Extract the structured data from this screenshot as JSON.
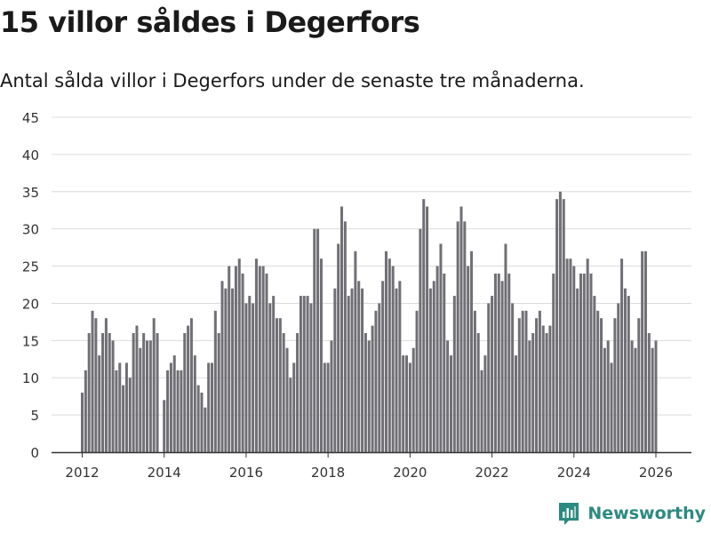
{
  "title": "15 villor såldes i Degerfors",
  "subtitle": "Antal sålda villor i Degerfors under de senaste tre månaderna.",
  "brand": {
    "name": "Newsworthy",
    "color": "#2c8a80"
  },
  "colors": {
    "bar": "#706f75",
    "highlight": "#2a9d8f",
    "grid": "#dcdcdc",
    "axis": "#333333",
    "text": "#333333"
  },
  "chart_data": {
    "type": "bar",
    "title": "15 villor såldes i Degerfors",
    "xlabel": "",
    "ylabel": "",
    "ylim": [
      0,
      45
    ],
    "yticks": [
      0,
      5,
      10,
      15,
      20,
      25,
      30,
      35,
      40,
      45
    ],
    "xticks": [
      2012,
      2014,
      2016,
      2018,
      2020,
      2022,
      2024,
      2026
    ],
    "start": {
      "year": 2012,
      "month": 1
    },
    "series": [
      {
        "name": "Antal sålda villor",
        "values": [
          8,
          11,
          16,
          19,
          18,
          13,
          16,
          18,
          16,
          15,
          11,
          12,
          9,
          12,
          10,
          16,
          17,
          14,
          16,
          15,
          15,
          18,
          16,
          0,
          7,
          11,
          12,
          13,
          11,
          11,
          16,
          17,
          18,
          13,
          9,
          8,
          6,
          12,
          12,
          19,
          16,
          23,
          22,
          25,
          22,
          25,
          26,
          24,
          20,
          21,
          20,
          26,
          25,
          25,
          24,
          20,
          21,
          18,
          18,
          16,
          14,
          10,
          12,
          16,
          21,
          21,
          21,
          20,
          30,
          30,
          26,
          12,
          12,
          15,
          22,
          28,
          33,
          31,
          21,
          22,
          27,
          23,
          22,
          16,
          15,
          17,
          19,
          20,
          23,
          27,
          26,
          25,
          22,
          23,
          13,
          13,
          12,
          14,
          19,
          30,
          34,
          33,
          22,
          23,
          25,
          28,
          24,
          15,
          13,
          21,
          31,
          33,
          31,
          25,
          27,
          19,
          16,
          11,
          13,
          20,
          21,
          24,
          24,
          23,
          28,
          24,
          20,
          13,
          18,
          19,
          19,
          15,
          16,
          18,
          19,
          17,
          16,
          17,
          24,
          34,
          35,
          34,
          26,
          26,
          25,
          22,
          24,
          24,
          26,
          24,
          21,
          19,
          18,
          14,
          15,
          12,
          18,
          20,
          26,
          22,
          21,
          15,
          14,
          18,
          27,
          27,
          16,
          14,
          15
        ]
      }
    ],
    "highlight": {
      "index": 169,
      "label": "15"
    }
  }
}
